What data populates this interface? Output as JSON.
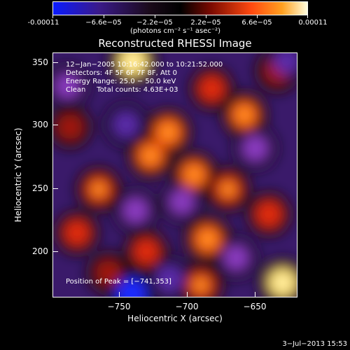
{
  "colorbar": {
    "ticks": [
      "-0.00011",
      "−6.6e−05",
      "−2.2e−05",
      "2.2e−05",
      "6.6e−05",
      "0.00011"
    ],
    "unit_label": "(photons cm⁻² s⁻¹ asec⁻²)",
    "colors": [
      "#0a1bff",
      "#3a1a8a",
      "#1a0a1a",
      "#000000",
      "#7a0a00",
      "#ff4a10",
      "#ffa020",
      "#ffffe0"
    ]
  },
  "plot": {
    "title": "Reconstructed RHESSI Image",
    "xlabel": "Heliocentric X (arcsec)",
    "ylabel": "Heliocentric Y (arcsec)",
    "xticks": [
      "−750",
      "−700",
      "−650"
    ],
    "yticks": [
      "350",
      "300",
      "250",
      "200"
    ],
    "annotations": [
      "12−Jan−2005 10:16:42.000 to 10:21:52.000",
      "Detectors: 4F 5F 6F 7F 8F, Att 0",
      "Energy Range: 25.0 − 50.0 keV",
      "Clean     Total counts: 4.63E+03"
    ],
    "peak_label": "Position of Peak = [−741,353]"
  },
  "footer": {
    "timestamp": "3−Jul−2013 15:53"
  },
  "chart_data": {
    "type": "heatmap",
    "title": "Reconstructed RHESSI Image",
    "xlabel": "Heliocentric X (arcsec)",
    "ylabel": "Heliocentric Y (arcsec)",
    "xlim": [
      -797,
      -617
    ],
    "ylim": [
      163,
      360
    ],
    "colorbar_range": [
      -0.00011,
      0.00011
    ],
    "colorbar_label": "(photons cm⁻² s⁻¹ asec⁻²)",
    "peak": [
      -741,
      353
    ],
    "grid": false,
    "blobs": [
      {
        "x": -738,
        "y": 353,
        "v": 1.0
      },
      {
        "x": -712,
        "y": 296,
        "v": 0.85
      },
      {
        "x": -725,
        "y": 277,
        "v": 0.75
      },
      {
        "x": -763,
        "y": 250,
        "v": 0.7
      },
      {
        "x": -693,
        "y": 262,
        "v": 0.75
      },
      {
        "x": -668,
        "y": 250,
        "v": 0.7
      },
      {
        "x": -656,
        "y": 310,
        "v": 0.75
      },
      {
        "x": -680,
        "y": 331,
        "v": 0.6
      },
      {
        "x": -784,
        "y": 300,
        "v": 0.55
      },
      {
        "x": -779,
        "y": 215,
        "v": 0.6
      },
      {
        "x": -728,
        "y": 200,
        "v": 0.6
      },
      {
        "x": -683,
        "y": 210,
        "v": 0.85
      },
      {
        "x": -638,
        "y": 230,
        "v": 0.65
      },
      {
        "x": -628,
        "y": 175,
        "v": 0.95
      },
      {
        "x": -688,
        "y": 173,
        "v": 0.7
      },
      {
        "x": -756,
        "y": 183,
        "v": 0.5
      },
      {
        "x": -632,
        "y": 345,
        "v": 0.55
      },
      {
        "x": -736,
        "y": 233,
        "v": -0.55
      },
      {
        "x": -743,
        "y": 302,
        "v": -0.6
      },
      {
        "x": -711,
        "y": 178,
        "v": -0.7
      },
      {
        "x": -739,
        "y": 166,
        "v": -0.95
      },
      {
        "x": -625,
        "y": 353,
        "v": -0.65
      },
      {
        "x": -648,
        "y": 283,
        "v": -0.55
      },
      {
        "x": -702,
        "y": 240,
        "v": -0.5
      },
      {
        "x": -786,
        "y": 333,
        "v": -0.5
      },
      {
        "x": -662,
        "y": 195,
        "v": -0.5
      }
    ]
  }
}
